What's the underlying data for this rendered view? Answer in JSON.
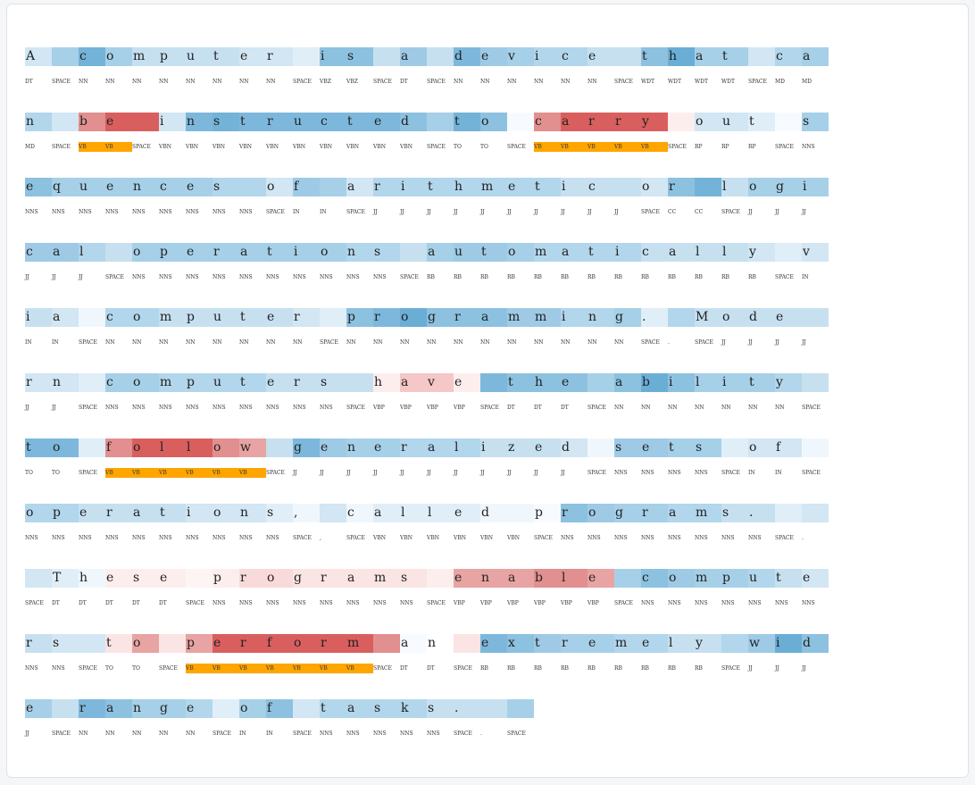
{
  "colors": {
    "vb_highlight": "#ffa500",
    "card_background": "#ffffff",
    "page_background": "#f5f6f8"
  },
  "lines": [
    {
      "chars": "A computer is a device that ca",
      "tags": [
        "DT",
        "SPACE",
        "NN",
        "NN",
        "NN",
        "NN",
        "NN",
        "NN",
        "NN",
        "NN",
        "SPACE",
        "VBZ",
        "VBZ",
        "SPACE",
        "DT",
        "SPACE",
        "NN",
        "NN",
        "NN",
        "NN",
        "NN",
        "NN",
        "SPACE",
        "WDT",
        "WDT",
        "WDT",
        "WDT",
        "SPACE",
        "MD",
        "MD"
      ],
      "colors": [
        "#d2e6f3",
        "#a6d0e8",
        "#73b3d8",
        "#a6d0e8",
        "#c6e0f0",
        "#c6e0f0",
        "#c6e0f0",
        "#c6e0f0",
        "#d2e6f3",
        "#d2e6f3",
        "#e0eef8",
        "#8dc1e0",
        "#8dc1e0",
        "#c6e0f0",
        "#9ecae6",
        "#c6e0f0",
        "#7db8dc",
        "#9ecae6",
        "#a6d0e8",
        "#b2d6ec",
        "#b2d6ec",
        "#c6e0f0",
        "#c6e0f0",
        "#8dc1e0",
        "#6aaed6",
        "#a6d0e8",
        "#a6d0e8",
        "#d2e6f3",
        "#b2d6ec",
        "#a6d0e8"
      ]
    },
    {
      "chars": "n be instructed to carry out s",
      "tags": [
        "MD",
        "SPACE",
        "VB",
        "VB",
        "SPACE",
        "VBN",
        "VBN",
        "VBN",
        "VBN",
        "VBN",
        "VBN",
        "VBN",
        "VBN",
        "VBN",
        "VBN",
        "SPACE",
        "TO",
        "TO",
        "SPACE",
        "VB",
        "VB",
        "VB",
        "VB",
        "VB",
        "SPACE",
        "RP",
        "RP",
        "RP",
        "SPACE",
        "NNS"
      ],
      "colors": [
        "#b2d6ec",
        "#d2e6f3",
        "#e28f8f",
        "#d95f5f",
        "#d95f5f",
        "#d2e6f3",
        "#7db8dc",
        "#73b3d8",
        "#7db8dc",
        "#7db8dc",
        "#7db8dc",
        "#7db8dc",
        "#7db8dc",
        "#7db8dc",
        "#8dc1e0",
        "#a6d0e8",
        "#73b3d8",
        "#8dc1e0",
        "#f7fbff",
        "#e28f8f",
        "#d95f5f",
        "#d95f5f",
        "#d95f5f",
        "#d95f5f",
        "#fdeeee",
        "#d2e6f3",
        "#d2e6f3",
        "#e0eef8",
        "#f7fbff",
        "#a6d0e8"
      ]
    },
    {
      "chars": "equences of arithmetic or logi",
      "tags": [
        "NNS",
        "NNS",
        "NNS",
        "NNS",
        "NNS",
        "NNS",
        "NNS",
        "NNS",
        "NNS",
        "SPACE",
        "IN",
        "IN",
        "SPACE",
        "JJ",
        "JJ",
        "JJ",
        "JJ",
        "JJ",
        "JJ",
        "JJ",
        "JJ",
        "JJ",
        "JJ",
        "SPACE",
        "CC",
        "CC",
        "SPACE",
        "JJ",
        "JJ",
        "JJ"
      ],
      "colors": [
        "#8dc1e0",
        "#a6d0e8",
        "#a6d0e8",
        "#a6d0e8",
        "#a6d0e8",
        "#a6d0e8",
        "#a6d0e8",
        "#b2d6ec",
        "#b2d6ec",
        "#d2e6f3",
        "#9ecae6",
        "#a6d0e8",
        "#d2e6f3",
        "#b2d6ec",
        "#b2d6ec",
        "#b2d6ec",
        "#b2d6ec",
        "#b2d6ec",
        "#b2d6ec",
        "#b2d6ec",
        "#c6e0f0",
        "#c6e0f0",
        "#c6e0f0",
        "#d2e6f3",
        "#8dc1e0",
        "#73b3d8",
        "#c6e0f0",
        "#a6d0e8",
        "#a6d0e8",
        "#a6d0e8"
      ]
    },
    {
      "chars": "cal operations automatically v",
      "tags": [
        "JJ",
        "JJ",
        "JJ",
        "SPACE",
        "NNS",
        "NNS",
        "NNS",
        "NNS",
        "NNS",
        "NNS",
        "NNS",
        "NNS",
        "NNS",
        "NNS",
        "SPACE",
        "RB",
        "RB",
        "RB",
        "RB",
        "RB",
        "RB",
        "RB",
        "RB",
        "RB",
        "RB",
        "RB",
        "RB",
        "RB",
        "SPACE",
        "IN"
      ],
      "colors": [
        "#9ecae6",
        "#9ecae6",
        "#b2d6ec",
        "#c6e0f0",
        "#a6d0e8",
        "#a6d0e8",
        "#a6d0e8",
        "#a6d0e8",
        "#a6d0e8",
        "#a6d0e8",
        "#a6d0e8",
        "#a6d0e8",
        "#b2d6ec",
        "#b2d6ec",
        "#c6e0f0",
        "#a6d0e8",
        "#9ecae6",
        "#9ecae6",
        "#a6d0e8",
        "#b2d6ec",
        "#b2d6ec",
        "#b2d6ec",
        "#b2d6ec",
        "#c6e0f0",
        "#c6e0f0",
        "#c6e0f0",
        "#c6e0f0",
        "#d2e6f3",
        "#e0eef8",
        "#d2e6f3"
      ]
    },
    {
      "chars": "ia computer programming. Mode",
      "tags": [
        "IN",
        "IN",
        "SPACE",
        "NN",
        "NN",
        "NN",
        "NN",
        "NN",
        "NN",
        "NN",
        "NN",
        "SPACE",
        "NN",
        "NN",
        "NN",
        "NN",
        "NN",
        "NN",
        "NN",
        "NN",
        "NN",
        "NN",
        "NN",
        "SPACE",
        ".",
        "SPACE",
        "JJ",
        "JJ",
        "JJ",
        "JJ"
      ],
      "colors": [
        "#c6e0f0",
        "#d2e6f3",
        "#f0f7fc",
        "#b2d6ec",
        "#b2d6ec",
        "#c6e0f0",
        "#c6e0f0",
        "#c6e0f0",
        "#c6e0f0",
        "#c6e0f0",
        "#d2e6f3",
        "#e0eef8",
        "#8dc1e0",
        "#7db8dc",
        "#6aaed6",
        "#8dc1e0",
        "#8dc1e0",
        "#8dc1e0",
        "#9ecae6",
        "#9ecae6",
        "#b2d6ec",
        "#b2d6ec",
        "#a6d0e8",
        "#e0eef8",
        "#b2d6ec",
        "#c6e0f0",
        "#c6e0f0",
        "#c6e0f0",
        "#c6e0f0",
        "#c6e0f0"
      ]
    },
    {
      "chars": "rn computers have the ability ",
      "tags": [
        "JJ",
        "JJ",
        "SPACE",
        "NNS",
        "NNS",
        "NNS",
        "NNS",
        "NNS",
        "NNS",
        "NNS",
        "NNS",
        "NNS",
        "SPACE",
        "VBP",
        "VBP",
        "VBP",
        "VBP",
        "SPACE",
        "DT",
        "DT",
        "DT",
        "SPACE",
        "NN",
        "NN",
        "NN",
        "NN",
        "NN",
        "NN",
        "NN",
        "SPACE"
      ],
      "colors": [
        "#d2e6f3",
        "#d2e6f3",
        "#e0eef8",
        "#a6d0e8",
        "#a6d0e8",
        "#b2d6ec",
        "#b2d6ec",
        "#b2d6ec",
        "#b2d6ec",
        "#c6e0f0",
        "#c6e0f0",
        "#c6e0f0",
        "#c6e0f0",
        "#fdeeee",
        "#f5c7c7",
        "#f5c7c7",
        "#fdeeee",
        "#7db8dc",
        "#8dc1e0",
        "#8dc1e0",
        "#8dc1e0",
        "#a6d0e8",
        "#8dc1e0",
        "#6aaed6",
        "#8dc1e0",
        "#a6d0e8",
        "#a6d0e8",
        "#a6d0e8",
        "#b2d6ec",
        "#c6e0f0"
      ]
    },
    {
      "chars": "to follow generalized sets of ",
      "tags": [
        "TO",
        "TO",
        "SPACE",
        "VB",
        "VB",
        "VB",
        "VB",
        "VB",
        "VB",
        "SPACE",
        "JJ",
        "JJ",
        "JJ",
        "JJ",
        "JJ",
        "JJ",
        "JJ",
        "JJ",
        "JJ",
        "JJ",
        "JJ",
        "SPACE",
        "NNS",
        "NNS",
        "NNS",
        "NNS",
        "SPACE",
        "IN",
        "IN",
        "SPACE"
      ],
      "colors": [
        "#7db8dc",
        "#7db8dc",
        "#e0eef8",
        "#e28f8f",
        "#d95f5f",
        "#d95f5f",
        "#d95f5f",
        "#e28f8f",
        "#e8a3a3",
        "#c6e0f0",
        "#7db8dc",
        "#9ecae6",
        "#a6d0e8",
        "#a6d0e8",
        "#b2d6ec",
        "#b2d6ec",
        "#b2d6ec",
        "#c6e0f0",
        "#c6e0f0",
        "#c6e0f0",
        "#d2e6f3",
        "#f0f7fc",
        "#9ecae6",
        "#9ecae6",
        "#a6d0e8",
        "#a6d0e8",
        "#e0eef8",
        "#d2e6f3",
        "#d2e6f3",
        "#f0f7fc"
      ]
    },
    {
      "chars": "operations, called programs. ",
      "tags": [
        "NNS",
        "NNS",
        "NNS",
        "NNS",
        "NNS",
        "NNS",
        "NNS",
        "NNS",
        "NNS",
        "NNS",
        "SPACE",
        ",",
        "SPACE",
        "VBN",
        "VBN",
        "VBN",
        "VBN",
        "VBN",
        "VBN",
        "SPACE",
        "NNS",
        "NNS",
        "NNS",
        "NNS",
        "NNS",
        "NNS",
        "NNS",
        "NNS",
        "SPACE",
        "."
      ],
      "colors": [
        "#b2d6ec",
        "#b2d6ec",
        "#c6e0f0",
        "#c6e0f0",
        "#c6e0f0",
        "#c6e0f0",
        "#d2e6f3",
        "#d2e6f3",
        "#d2e6f3",
        "#e0eef8",
        "#f0f7fc",
        "#d2e6f3",
        "#f0f7fc",
        "#e0eef8",
        "#e0eef8",
        "#e0eef8",
        "#e0eef8",
        "#f0f7fc",
        "#f0f7fc",
        "#f7fbff",
        "#8dc1e0",
        "#9ecae6",
        "#a6d0e8",
        "#a6d0e8",
        "#b2d6ec",
        "#b2d6ec",
        "#c6e0f0",
        "#c6e0f0",
        "#e0eef8",
        "#d2e6f3"
      ]
    },
    {
      "chars": " These programs enable compute",
      "tags": [
        "SPACE",
        "DT",
        "DT",
        "DT",
        "DT",
        "DT",
        "SPACE",
        "NNS",
        "NNS",
        "NNS",
        "NNS",
        "NNS",
        "NNS",
        "NNS",
        "NNS",
        "SPACE",
        "VBP",
        "VBP",
        "VBP",
        "VBP",
        "VBP",
        "VBP",
        "SPACE",
        "NNS",
        "NNS",
        "NNS",
        "NNS",
        "NNS",
        "NNS",
        "NNS"
      ],
      "colors": [
        "#d2e6f3",
        "#e0eef8",
        "#f0f7fc",
        "#fdeeee",
        "#fdeeee",
        "#fdeeee",
        "#fdf4f4",
        "#fdeeee",
        "#f9dada",
        "#f9dada",
        "#fbe4e4",
        "#fbe4e4",
        "#fbe4e4",
        "#fbe4e4",
        "#fbe4e4",
        "#fdeeee",
        "#e8a3a3",
        "#e8a3a3",
        "#e8a3a3",
        "#e28f8f",
        "#e28f8f",
        "#e8a3a3",
        "#a6d0e8",
        "#8dc1e0",
        "#9ecae6",
        "#a6d0e8",
        "#a6d0e8",
        "#b2d6ec",
        "#c6e0f0",
        "#d2e6f3"
      ]
    },
    {
      "chars": "rs to perform an extremely wid",
      "tags": [
        "NNS",
        "NNS",
        "SPACE",
        "TO",
        "TO",
        "SPACE",
        "VB",
        "VB",
        "VB",
        "VB",
        "VB",
        "VB",
        "VB",
        "SPACE",
        "DT",
        "DT",
        "SPACE",
        "RB",
        "RB",
        "RB",
        "RB",
        "RB",
        "RB",
        "RB",
        "RB",
        "RB",
        "SPACE",
        "JJ",
        "JJ",
        "JJ"
      ],
      "colors": [
        "#c6e0f0",
        "#d2e6f3",
        "#d2e6f3",
        "#fbe4e4",
        "#e8a3a3",
        "#fbe4e4",
        "#e8a3a3",
        "#d95f5f",
        "#d95f5f",
        "#d95f5f",
        "#d95f5f",
        "#d95f5f",
        "#d95f5f",
        "#e28f8f",
        "#f7fbff",
        "#ffffff",
        "#fbe4e4",
        "#7db8dc",
        "#8dc1e0",
        "#9ecae6",
        "#a6d0e8",
        "#a6d0e8",
        "#b2d6ec",
        "#b2d6ec",
        "#c6e0f0",
        "#c6e0f0",
        "#b2d6ec",
        "#9ecae6",
        "#6aaed6",
        "#8dc1e0"
      ]
    },
    {
      "chars": "e range of tasks. ",
      "tags": [
        "JJ",
        "SPACE",
        "NN",
        "NN",
        "NN",
        "NN",
        "NN",
        "SPACE",
        "IN",
        "IN",
        "SPACE",
        "NNS",
        "NNS",
        "NNS",
        "NNS",
        "NNS",
        "SPACE",
        ".",
        "SPACE"
      ],
      "colors": [
        "#a6d0e8",
        "#c6e0f0",
        "#7db8dc",
        "#8dc1e0",
        "#a6d0e8",
        "#a6d0e8",
        "#b2d6ec",
        "#e0eef8",
        "#a6d0e8",
        "#8dc1e0",
        "#d2e6f3",
        "#b2d6ec",
        "#b2d6ec",
        "#b2d6ec",
        "#b2d6ec",
        "#c6e0f0",
        "#c6e0f0",
        "#c6e0f0",
        "#a6d0e8"
      ]
    }
  ]
}
